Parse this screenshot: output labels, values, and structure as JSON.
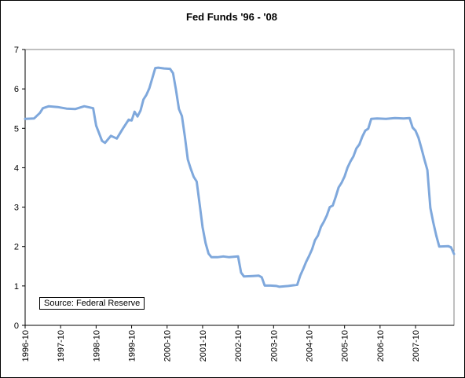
{
  "chart_data": {
    "type": "line",
    "title": "Fed Funds '96 - '08",
    "xlabel": "",
    "ylabel": "",
    "ylim": [
      0,
      7
    ],
    "yticks": [
      "0",
      "1",
      "2",
      "3",
      "4",
      "5",
      "6",
      "7"
    ],
    "x_range": [
      "1996-10",
      "2008-06"
    ],
    "x_tick_labels": [
      "1996-10",
      "1997-10",
      "1998-10",
      "1999-10",
      "2000-10",
      "2001-10",
      "2002-10",
      "2003-10",
      "2004-10",
      "2005-10",
      "2006-10",
      "2007-10"
    ],
    "grid": false,
    "legend_text": "Source: Federal Reserve",
    "legend_position": "bottom-left",
    "series": [
      {
        "line_color": "#7fa8dc",
        "points": [
          [
            "1996-10",
            5.24
          ],
          [
            "1997-01",
            5.25
          ],
          [
            "1997-03",
            5.39
          ],
          [
            "1997-04",
            5.51
          ],
          [
            "1997-06",
            5.56
          ],
          [
            "1997-09",
            5.54
          ],
          [
            "1997-12",
            5.5
          ],
          [
            "1998-03",
            5.49
          ],
          [
            "1998-06",
            5.56
          ],
          [
            "1998-09",
            5.51
          ],
          [
            "1998-10",
            5.07
          ],
          [
            "1998-12",
            4.68
          ],
          [
            "1999-01",
            4.63
          ],
          [
            "1999-03",
            4.81
          ],
          [
            "1999-05",
            4.74
          ],
          [
            "1999-07",
            4.99
          ],
          [
            "1999-09",
            5.22
          ],
          [
            "1999-10",
            5.2
          ],
          [
            "1999-11",
            5.42
          ],
          [
            "1999-12",
            5.3
          ],
          [
            "2000-01",
            5.45
          ],
          [
            "2000-02",
            5.73
          ],
          [
            "2000-03",
            5.85
          ],
          [
            "2000-04",
            6.02
          ],
          [
            "2000-05",
            6.27
          ],
          [
            "2000-06",
            6.53
          ],
          [
            "2000-07",
            6.54
          ],
          [
            "2000-09",
            6.52
          ],
          [
            "2000-11",
            6.51
          ],
          [
            "2000-12",
            6.4
          ],
          [
            "2001-01",
            5.98
          ],
          [
            "2001-02",
            5.49
          ],
          [
            "2001-03",
            5.31
          ],
          [
            "2001-04",
            4.8
          ],
          [
            "2001-05",
            4.21
          ],
          [
            "2001-06",
            3.97
          ],
          [
            "2001-07",
            3.77
          ],
          [
            "2001-08",
            3.65
          ],
          [
            "2001-09",
            3.07
          ],
          [
            "2001-10",
            2.49
          ],
          [
            "2001-11",
            2.09
          ],
          [
            "2001-12",
            1.82
          ],
          [
            "2002-01",
            1.73
          ],
          [
            "2002-03",
            1.73
          ],
          [
            "2002-05",
            1.75
          ],
          [
            "2002-07",
            1.73
          ],
          [
            "2002-10",
            1.75
          ],
          [
            "2002-11",
            1.34
          ],
          [
            "2002-12",
            1.24
          ],
          [
            "2003-03",
            1.25
          ],
          [
            "2003-05",
            1.26
          ],
          [
            "2003-06",
            1.22
          ],
          [
            "2003-07",
            1.01
          ],
          [
            "2003-09",
            1.01
          ],
          [
            "2003-11",
            1.0
          ],
          [
            "2003-12",
            0.98
          ],
          [
            "2004-03",
            1.0
          ],
          [
            "2004-06",
            1.03
          ],
          [
            "2004-07",
            1.26
          ],
          [
            "2004-08",
            1.43
          ],
          [
            "2004-09",
            1.61
          ],
          [
            "2004-10",
            1.76
          ],
          [
            "2004-11",
            1.93
          ],
          [
            "2004-12",
            2.16
          ],
          [
            "2005-01",
            2.28
          ],
          [
            "2005-02",
            2.5
          ],
          [
            "2005-03",
            2.63
          ],
          [
            "2005-04",
            2.79
          ],
          [
            "2005-05",
            3.0
          ],
          [
            "2005-06",
            3.04
          ],
          [
            "2005-07",
            3.26
          ],
          [
            "2005-08",
            3.5
          ],
          [
            "2005-09",
            3.62
          ],
          [
            "2005-10",
            3.78
          ],
          [
            "2005-11",
            4.0
          ],
          [
            "2005-12",
            4.16
          ],
          [
            "2006-01",
            4.29
          ],
          [
            "2006-02",
            4.49
          ],
          [
            "2006-03",
            4.59
          ],
          [
            "2006-04",
            4.79
          ],
          [
            "2006-05",
            4.94
          ],
          [
            "2006-06",
            4.99
          ],
          [
            "2006-07",
            5.24
          ],
          [
            "2006-09",
            5.25
          ],
          [
            "2006-12",
            5.24
          ],
          [
            "2007-03",
            5.26
          ],
          [
            "2007-06",
            5.25
          ],
          [
            "2007-08",
            5.26
          ],
          [
            "2007-09",
            5.02
          ],
          [
            "2007-10",
            4.94
          ],
          [
            "2007-11",
            4.76
          ],
          [
            "2007-12",
            4.49
          ],
          [
            "2008-01",
            4.21
          ],
          [
            "2008-02",
            3.94
          ],
          [
            "2008-03",
            2.98
          ],
          [
            "2008-04",
            2.61
          ],
          [
            "2008-05",
            2.28
          ],
          [
            "2008-06",
            2.0
          ],
          [
            "2008-09",
            2.01
          ],
          [
            "2008-10",
            1.98
          ],
          [
            "2008-11",
            1.81
          ]
        ]
      }
    ]
  }
}
